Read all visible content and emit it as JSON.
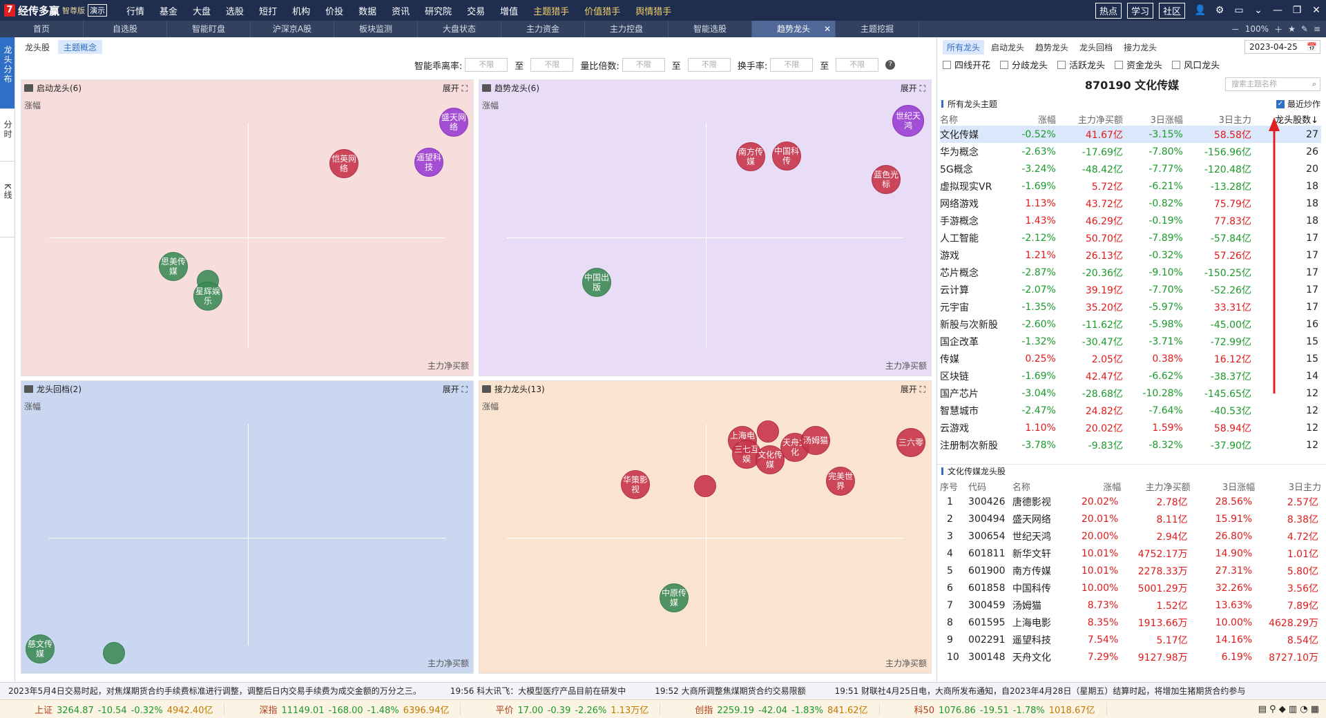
{
  "app": {
    "logo_mark": "7",
    "name": "经传多赢",
    "edition": "智尊版",
    "demo": "演示"
  },
  "menu": [
    "行情",
    "基金",
    "大盘",
    "选股",
    "短打",
    "机构",
    "价投",
    "数据",
    "资讯",
    "研究院",
    "交易",
    "增值",
    "主题猎手",
    "价值猎手",
    "舆情猎手"
  ],
  "menu_gold": [
    "主题猎手",
    "价值猎手",
    "舆情猎手"
  ],
  "top_buttons": [
    "热点",
    "学习",
    "社区"
  ],
  "tabs": [
    "首页",
    "自选股",
    "智能盯盘",
    "沪深京A股",
    "板块监测",
    "大盘状态",
    "主力资金",
    "主力控盘",
    "智能选股",
    "趋势龙头",
    "主题挖掘"
  ],
  "active_tab": "趋势龙头",
  "zoom": "100%",
  "left_nav": [
    "龙头分布",
    "分时",
    "K线"
  ],
  "sub_tabs": [
    "龙头股",
    "主题概念"
  ],
  "filters": {
    "deviation": "智能乖离率:",
    "volume": "量比倍数:",
    "turnover": "换手率:",
    "unlimited": "不限",
    "to": "至"
  },
  "panels": [
    {
      "title": "启动龙头(6)",
      "expand": "展开"
    },
    {
      "title": "趋势龙头(6)",
      "expand": "展开"
    },
    {
      "title": "龙头回档(2)",
      "expand": "展开"
    },
    {
      "title": "接力龙头(13)",
      "expand": "展开"
    }
  ],
  "axis": {
    "y": "涨幅",
    "x": "主力净买额"
  },
  "bubbles": {
    "p1": [
      "盛天网络",
      "恺英网络",
      "遥望科技",
      "思美传媒",
      "",
      "星辉娱乐"
    ],
    "p2": [
      "世纪天鸿",
      "南方传媒",
      "中国科传",
      "蓝色光标",
      "中国出版"
    ],
    "p3": [
      "慈文传媒",
      ""
    ],
    "p4": [
      "上海电影",
      "",
      "三七互娱",
      "天舟文化",
      "汤姆猫",
      "文化传媒",
      "三六零",
      "华策影视",
      "",
      "完美世界",
      "中原传媒"
    ]
  },
  "colors": {
    "red": "#c8354b",
    "green": "#3e8b57",
    "purple": "#9c3fd4",
    "accent": "#2f6fc6"
  },
  "right": {
    "tabs": [
      "所有龙头",
      "启动龙头",
      "趋势龙头",
      "龙头回档",
      "接力龙头"
    ],
    "date": "2023-04-25",
    "checks": [
      "四线开花",
      "分歧龙头",
      "活跃龙头",
      "资金龙头",
      "风口龙头"
    ],
    "title": "870190  文化传媒",
    "search_placeholder": "搜索主题名称",
    "section1": "所有龙头主题",
    "recent": "最近炒作",
    "theme_headers": [
      "名称",
      "涨幅",
      "主力净买额",
      "3日涨幅",
      "3日主力",
      "龙头股数↓"
    ],
    "themes": [
      [
        "文化传媒",
        "-0.52%",
        "41.67亿",
        "-3.15%",
        "58.58亿",
        "27"
      ],
      [
        "华为概念",
        "-2.63%",
        "-17.69亿",
        "-7.80%",
        "-156.96亿",
        "26"
      ],
      [
        "5G概念",
        "-3.24%",
        "-48.42亿",
        "-7.77%",
        "-120.48亿",
        "20"
      ],
      [
        "虚拟现实VR",
        "-1.69%",
        "5.72亿",
        "-6.21%",
        "-13.28亿",
        "18"
      ],
      [
        "网络游戏",
        "1.13%",
        "43.72亿",
        "-0.82%",
        "75.79亿",
        "18"
      ],
      [
        "手游概念",
        "1.43%",
        "46.29亿",
        "-0.19%",
        "77.83亿",
        "18"
      ],
      [
        "人工智能",
        "-2.12%",
        "50.70亿",
        "-7.89%",
        "-57.84亿",
        "17"
      ],
      [
        "游戏",
        "1.21%",
        "26.13亿",
        "-0.32%",
        "57.26亿",
        "17"
      ],
      [
        "芯片概念",
        "-2.87%",
        "-20.36亿",
        "-9.10%",
        "-150.25亿",
        "17"
      ],
      [
        "云计算",
        "-2.07%",
        "39.19亿",
        "-7.70%",
        "-52.26亿",
        "17"
      ],
      [
        "元宇宙",
        "-1.35%",
        "35.20亿",
        "-5.97%",
        "33.31亿",
        "17"
      ],
      [
        "新股与次新股",
        "-2.60%",
        "-11.62亿",
        "-5.98%",
        "-45.00亿",
        "16"
      ],
      [
        "国企改革",
        "-1.32%",
        "-30.47亿",
        "-3.71%",
        "-72.99亿",
        "15"
      ],
      [
        "传媒",
        "0.25%",
        "2.05亿",
        "0.38%",
        "16.12亿",
        "15"
      ],
      [
        "区块链",
        "-1.69%",
        "42.47亿",
        "-6.62%",
        "-38.37亿",
        "14"
      ],
      [
        "国产芯片",
        "-3.04%",
        "-28.68亿",
        "-10.28%",
        "-145.65亿",
        "12"
      ],
      [
        "智慧城市",
        "-2.47%",
        "24.82亿",
        "-7.64%",
        "-40.53亿",
        "12"
      ],
      [
        "云游戏",
        "1.10%",
        "20.02亿",
        "1.59%",
        "58.94亿",
        "12"
      ],
      [
        "注册制次新股",
        "-3.78%",
        "-9.83亿",
        "-8.32%",
        "-37.90亿",
        "12"
      ]
    ],
    "section2": "文化传媒龙头股",
    "stock_headers": [
      "序号",
      "代码",
      "名称",
      "涨幅",
      "主力净买额",
      "3日涨幅",
      "3日主力"
    ],
    "stocks": [
      [
        "1",
        "300426",
        "唐德影视",
        "20.02%",
        "2.78亿",
        "28.56%",
        "2.57亿"
      ],
      [
        "2",
        "300494",
        "盛天网络",
        "20.01%",
        "8.11亿",
        "15.91%",
        "8.38亿"
      ],
      [
        "3",
        "300654",
        "世纪天鸿",
        "20.00%",
        "2.94亿",
        "26.80%",
        "4.72亿"
      ],
      [
        "4",
        "601811",
        "新华文轩",
        "10.01%",
        "4752.17万",
        "14.90%",
        "1.01亿"
      ],
      [
        "5",
        "601900",
        "南方传媒",
        "10.01%",
        "2278.33万",
        "27.31%",
        "5.80亿"
      ],
      [
        "6",
        "601858",
        "中国科传",
        "10.00%",
        "5001.29万",
        "32.26%",
        "3.56亿"
      ],
      [
        "7",
        "300459",
        "汤姆猫",
        "8.73%",
        "1.52亿",
        "13.63%",
        "7.89亿"
      ],
      [
        "8",
        "601595",
        "上海电影",
        "8.35%",
        "1913.66万",
        "10.00%",
        "4628.29万"
      ],
      [
        "9",
        "002291",
        "遥望科技",
        "7.54%",
        "5.17亿",
        "14.16%",
        "8.54亿"
      ],
      [
        "10",
        "300148",
        "天舟文化",
        "7.29%",
        "9127.98万",
        "6.19%",
        "8727.10万"
      ]
    ]
  },
  "ticker": [
    "2023年5月4日交易时起，对焦煤期货合约手续费标准进行调整，调整后日内交易手续费为成交金额的万分之三。",
    "19:56 科大讯飞：大模型医疗产品目前在研发中",
    "19:52 大商所调整焦煤期货合约交易限额",
    "19:51 财联社4月25日电，大商所发布通知，自2023年4月28日（星期五）结算时起，将增加生猪期货合约参与"
  ],
  "indices": [
    {
      "name": "上证",
      "v": "3264.87",
      "c": "-10.54",
      "p": "-0.32%",
      "a": "4942.40亿"
    },
    {
      "name": "深指",
      "v": "11149.01",
      "c": "-168.00",
      "p": "-1.48%",
      "a": "6396.94亿"
    },
    {
      "name": "平价",
      "v": "17.00",
      "c": "-0.39",
      "p": "-2.26%",
      "a": "1.13万亿"
    },
    {
      "name": "创指",
      "v": "2259.19",
      "c": "-42.04",
      "p": "-1.83%",
      "a": "841.62亿"
    },
    {
      "name": "科50",
      "v": "1076.86",
      "c": "-19.51",
      "p": "-1.78%",
      "a": "1018.67亿"
    }
  ]
}
